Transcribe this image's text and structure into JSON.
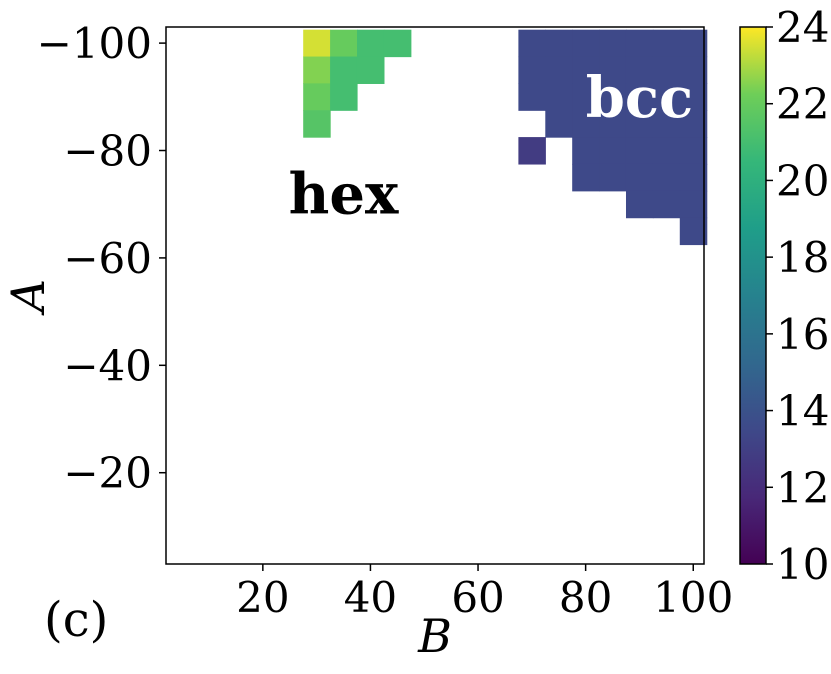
{
  "chart_data": {
    "type": "heatmap",
    "panel_label": "(c)",
    "xlabel": "B",
    "ylabel": "A",
    "xlim": [
      2,
      102
    ],
    "ylim": [
      -103,
      -3
    ],
    "x_ticks": [
      20,
      40,
      60,
      80,
      100
    ],
    "x_tick_labels": [
      "20",
      "40",
      "60",
      "80",
      "100"
    ],
    "y_ticks": [
      -100,
      -80,
      -60,
      -40,
      -20
    ],
    "y_tick_labels": [
      "−100",
      "−80",
      "−60",
      "−40",
      "−20"
    ],
    "cell_size": 5,
    "colormap": "viridis",
    "colorbar": {
      "range": [
        10,
        24
      ],
      "ticks": [
        10,
        12,
        14,
        16,
        18,
        20,
        22,
        24
      ],
      "tick_labels": [
        "10",
        "12",
        "14",
        "16",
        "18",
        "20",
        "22",
        "24"
      ]
    },
    "annotations": [
      {
        "text": "hex",
        "x": 35,
        "y": -72,
        "color": "#000000"
      },
      {
        "text": "bcc",
        "x": 90,
        "y": -90,
        "color": "#ffffff"
      }
    ],
    "cells": [
      {
        "x": 30,
        "y": -100,
        "v": 23.5
      },
      {
        "x": 35,
        "y": -100,
        "v": 22.0
      },
      {
        "x": 40,
        "y": -100,
        "v": 21.0
      },
      {
        "x": 45,
        "y": -100,
        "v": 21.0
      },
      {
        "x": 30,
        "y": -95,
        "v": 22.5
      },
      {
        "x": 35,
        "y": -95,
        "v": 21.0
      },
      {
        "x": 40,
        "y": -95,
        "v": 21.0
      },
      {
        "x": 30,
        "y": -90,
        "v": 22.0
      },
      {
        "x": 35,
        "y": -90,
        "v": 21.0
      },
      {
        "x": 30,
        "y": -85,
        "v": 21.5
      },
      {
        "x": 70,
        "y": -100,
        "v": 13.5
      },
      {
        "x": 75,
        "y": -100,
        "v": 13.5
      },
      {
        "x": 80,
        "y": -100,
        "v": 13.5
      },
      {
        "x": 85,
        "y": -100,
        "v": 13.5
      },
      {
        "x": 90,
        "y": -100,
        "v": 13.5
      },
      {
        "x": 95,
        "y": -100,
        "v": 13.5
      },
      {
        "x": 100,
        "y": -100,
        "v": 13.5
      },
      {
        "x": 70,
        "y": -95,
        "v": 13.5
      },
      {
        "x": 75,
        "y": -95,
        "v": 13.5
      },
      {
        "x": 80,
        "y": -95,
        "v": 13.5
      },
      {
        "x": 85,
        "y": -95,
        "v": 13.5
      },
      {
        "x": 90,
        "y": -95,
        "v": 13.5
      },
      {
        "x": 95,
        "y": -95,
        "v": 13.5
      },
      {
        "x": 100,
        "y": -95,
        "v": 13.5
      },
      {
        "x": 70,
        "y": -90,
        "v": 13.5
      },
      {
        "x": 75,
        "y": -90,
        "v": 13.5
      },
      {
        "x": 80,
        "y": -90,
        "v": 13.5
      },
      {
        "x": 85,
        "y": -90,
        "v": 13.5
      },
      {
        "x": 90,
        "y": -90,
        "v": 13.5
      },
      {
        "x": 95,
        "y": -90,
        "v": 13.5
      },
      {
        "x": 100,
        "y": -90,
        "v": 13.5
      },
      {
        "x": 75,
        "y": -85,
        "v": 13.5
      },
      {
        "x": 80,
        "y": -85,
        "v": 13.5
      },
      {
        "x": 85,
        "y": -85,
        "v": 13.5
      },
      {
        "x": 90,
        "y": -85,
        "v": 13.5
      },
      {
        "x": 95,
        "y": -85,
        "v": 13.5
      },
      {
        "x": 100,
        "y": -85,
        "v": 13.5
      },
      {
        "x": 70,
        "y": -80,
        "v": 12.8
      },
      {
        "x": 80,
        "y": -80,
        "v": 13.5
      },
      {
        "x": 85,
        "y": -80,
        "v": 13.5
      },
      {
        "x": 90,
        "y": -80,
        "v": 13.5
      },
      {
        "x": 95,
        "y": -80,
        "v": 13.5
      },
      {
        "x": 100,
        "y": -80,
        "v": 13.5
      },
      {
        "x": 80,
        "y": -75,
        "v": 13.5
      },
      {
        "x": 85,
        "y": -75,
        "v": 13.5
      },
      {
        "x": 90,
        "y": -75,
        "v": 13.5
      },
      {
        "x": 95,
        "y": -75,
        "v": 13.5
      },
      {
        "x": 100,
        "y": -75,
        "v": 13.5
      },
      {
        "x": 90,
        "y": -70,
        "v": 13.5
      },
      {
        "x": 95,
        "y": -70,
        "v": 13.5
      },
      {
        "x": 100,
        "y": -70,
        "v": 13.5
      },
      {
        "x": 100,
        "y": -65,
        "v": 13.5
      }
    ]
  }
}
